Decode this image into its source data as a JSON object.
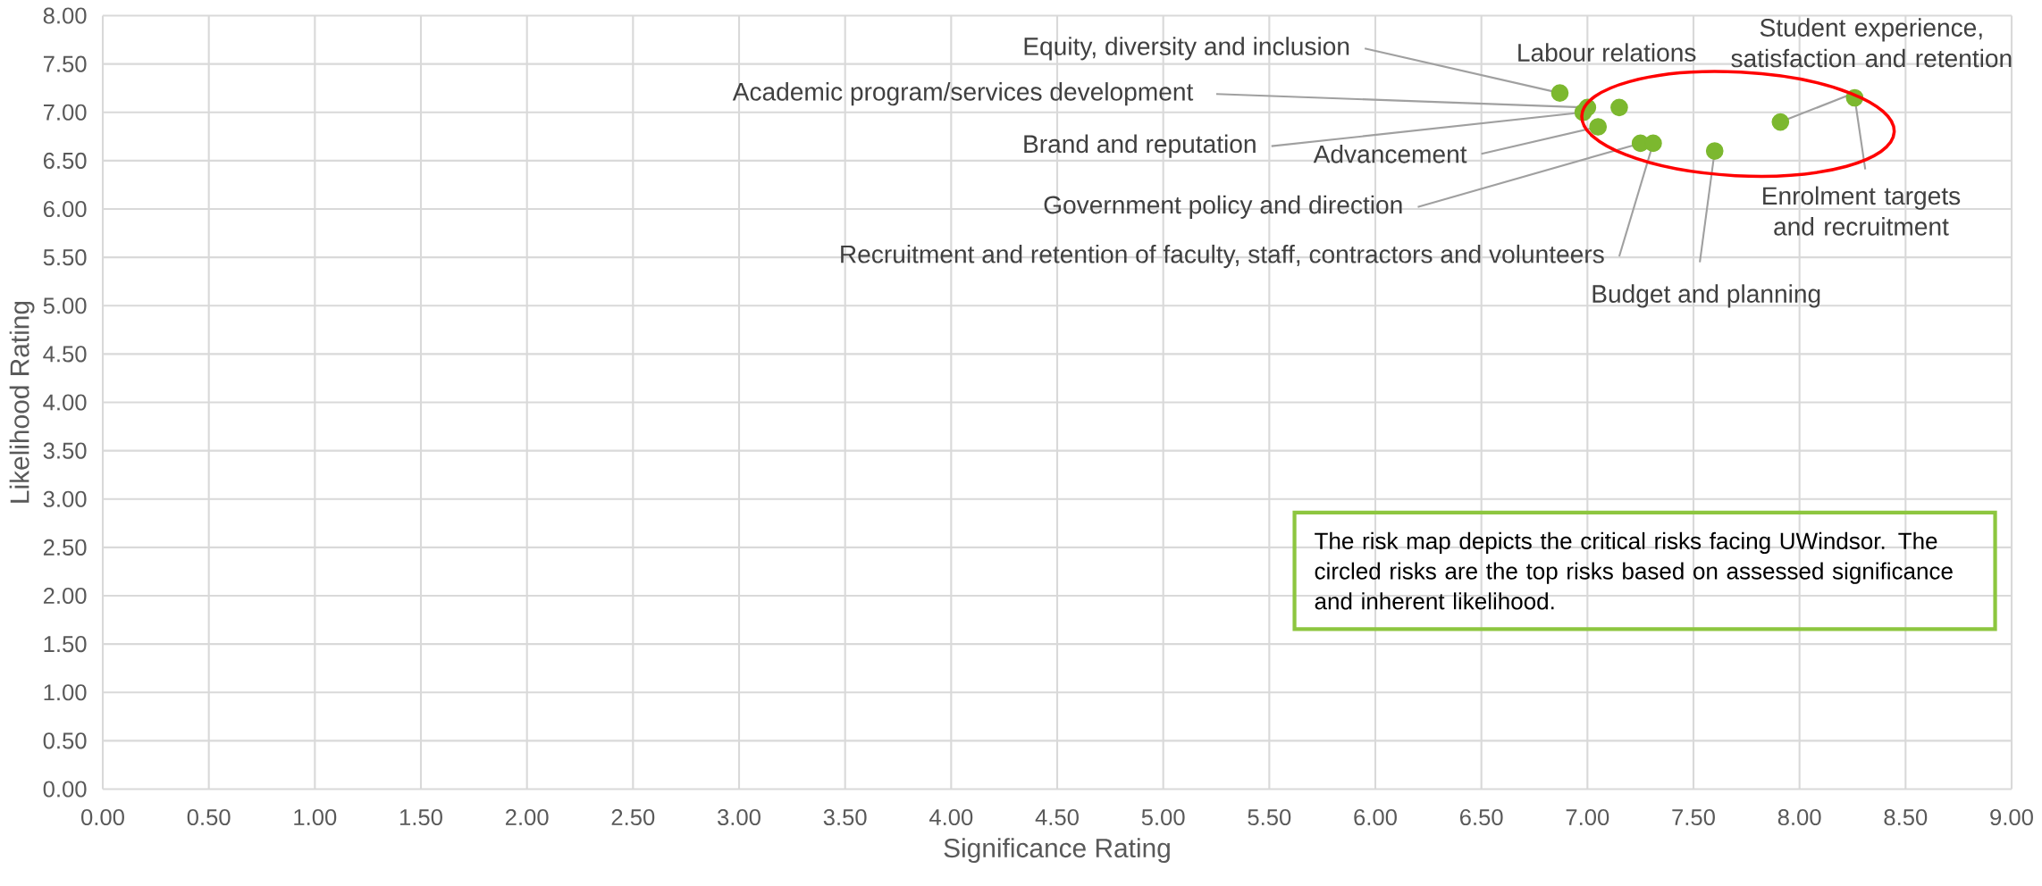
{
  "chart_data": {
    "type": "scatter",
    "xlabel": "Significance Rating",
    "ylabel": "Likelihood Rating",
    "x": [
      6.87,
      7.0,
      6.98,
      7.05,
      7.15,
      7.25,
      7.31,
      7.6,
      7.91,
      8.26
    ],
    "values": [
      7.2,
      7.05,
      7.0,
      6.85,
      7.05,
      6.68,
      6.68,
      6.6,
      6.9,
      7.15
    ],
    "color": "#7cb82f",
    "grid": true,
    "xlim": [
      0,
      9
    ],
    "ylim": [
      0,
      8
    ],
    "xticks": [
      {
        "value": 0,
        "label": "0.00"
      },
      {
        "value": 0.5,
        "label": "0.50"
      },
      {
        "value": 1,
        "label": "1.00"
      },
      {
        "value": 1.5,
        "label": "1.50"
      },
      {
        "value": 2,
        "label": "2.00"
      },
      {
        "value": 2.5,
        "label": "2.50"
      },
      {
        "value": 3,
        "label": "3.00"
      },
      {
        "value": 3.5,
        "label": "3.50"
      },
      {
        "value": 4,
        "label": "4.00"
      },
      {
        "value": 4.5,
        "label": "4.50"
      },
      {
        "value": 5,
        "label": "5.00"
      },
      {
        "value": 5.5,
        "label": "5.50"
      },
      {
        "value": 6,
        "label": "6.00"
      },
      {
        "value": 6.5,
        "label": "6.50"
      },
      {
        "value": 7,
        "label": "7.00"
      },
      {
        "value": 7.5,
        "label": "7.50"
      },
      {
        "value": 8,
        "label": "8.00"
      },
      {
        "value": 8.5,
        "label": "8.50"
      },
      {
        "value": 9,
        "label": "9.00"
      }
    ],
    "yticks": [
      {
        "value": 0,
        "label": "0.00"
      },
      {
        "value": 0.5,
        "label": "0.50"
      },
      {
        "value": 1,
        "label": "1.00"
      },
      {
        "value": 1.5,
        "label": "1.50"
      },
      {
        "value": 2,
        "label": "2.00"
      },
      {
        "value": 2.5,
        "label": "2.50"
      },
      {
        "value": 3,
        "label": "3.00"
      },
      {
        "value": 3.5,
        "label": "3.50"
      },
      {
        "value": 4,
        "label": "4.00"
      },
      {
        "value": 4.5,
        "label": "4.50"
      },
      {
        "value": 5,
        "label": "5.00"
      },
      {
        "value": 5.5,
        "label": "5.50"
      },
      {
        "value": 6,
        "label": "6.00"
      },
      {
        "value": 6.5,
        "label": "6.50"
      },
      {
        "value": 7,
        "label": "7.00"
      },
      {
        "value": 7.5,
        "label": "7.50"
      },
      {
        "value": 8,
        "label": "8.00"
      }
    ],
    "annotations": [
      {
        "text": "Equity, diversity and inclusion",
        "x": 6.87,
        "y": 7.2
      },
      {
        "text": "Academic program/services development",
        "x": 7.0,
        "y": 7.05
      },
      {
        "text": "Brand and reputation",
        "x": 6.98,
        "y": 7.0
      },
      {
        "text": "Advancement",
        "x": 7.05,
        "y": 6.85
      },
      {
        "text": "Labour relations",
        "x": 7.15,
        "y": 7.05
      },
      {
        "text": "Government policy and direction",
        "x": 7.25,
        "y": 6.68
      },
      {
        "text": "Recruitment and retention of faculty, staff, contractors and volunteers",
        "x": 7.31,
        "y": 6.68
      },
      {
        "text": "Budget and planning",
        "x": 7.6,
        "y": 6.6
      },
      {
        "text": "Student experience, satisfaction and retention",
        "x": 7.91,
        "y": 6.9
      },
      {
        "text": "Enrolment targets and recruitment",
        "x": 8.26,
        "y": 7.15
      },
      "The risk map depicts the critical risks facing UWindsor. The circled risks are the top risks based on assessed significance and inherent likelihood."
    ]
  }
}
